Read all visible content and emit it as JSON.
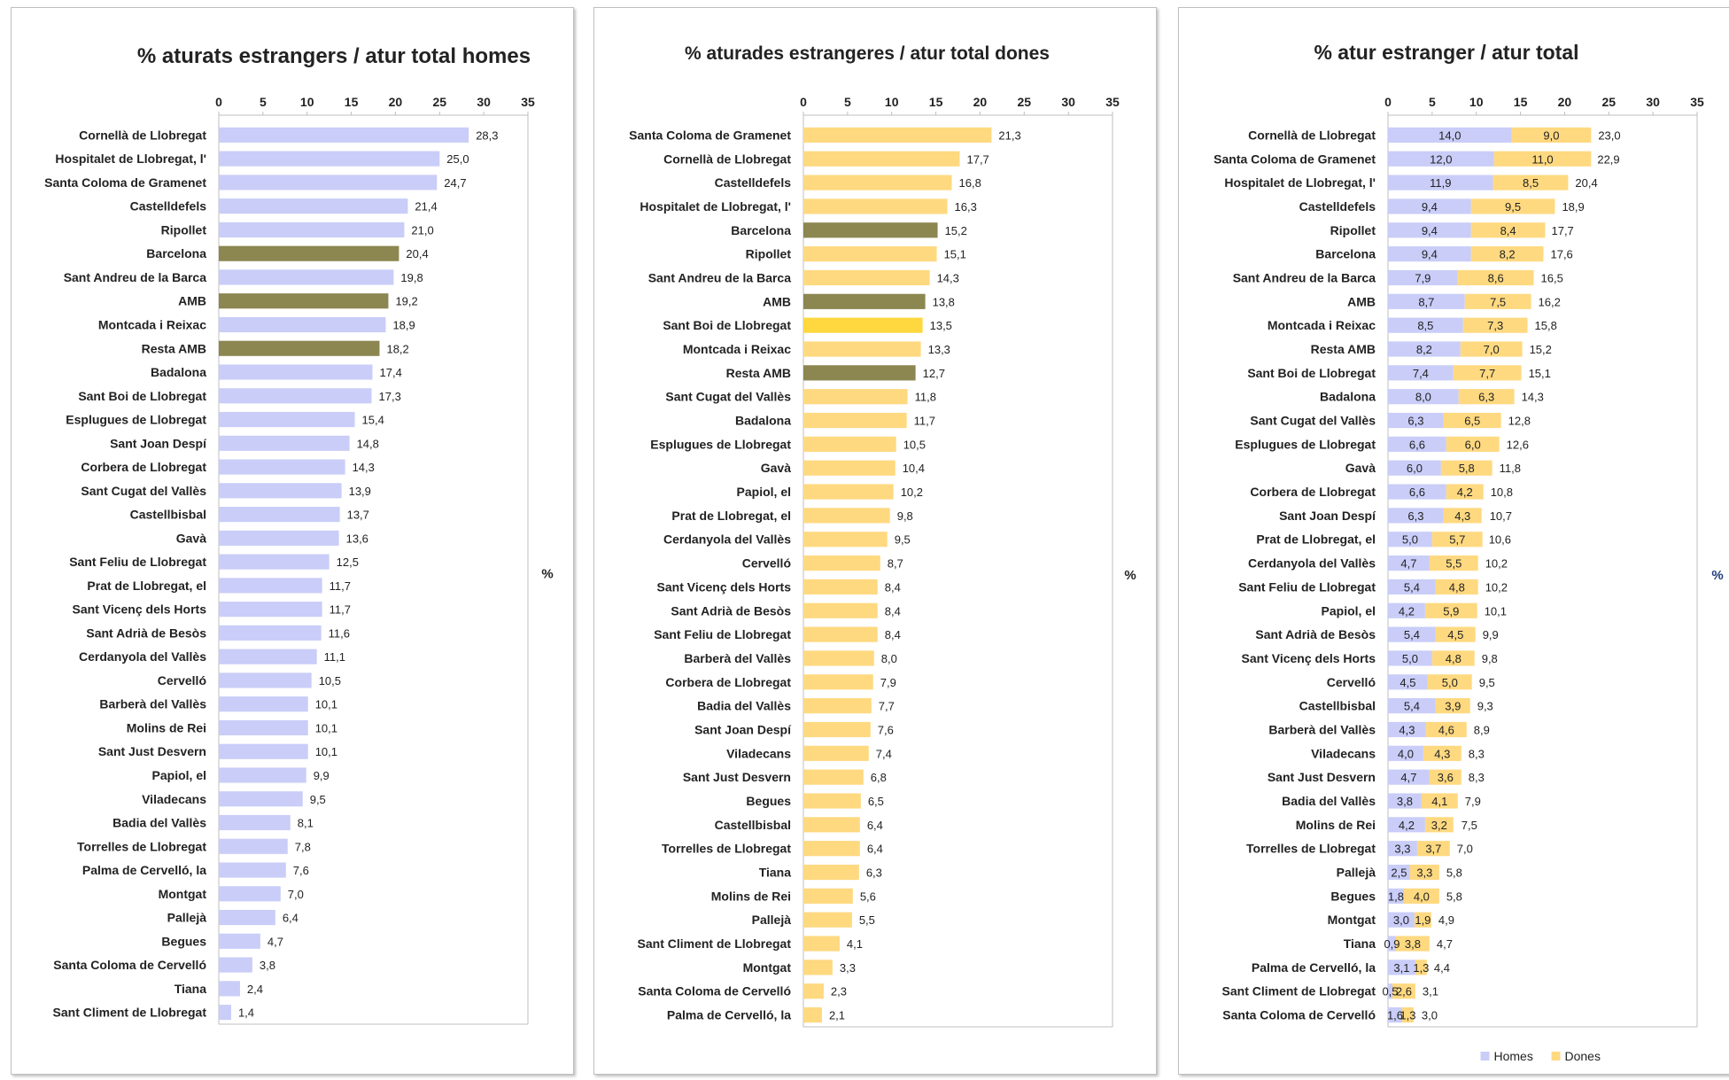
{
  "colors": {
    "homes": "#c9cdf8",
    "dones": "#ffd980",
    "highlight_homes": "#8c8650",
    "highlight_dones": "#8c8650",
    "highlight_yellow": "#ffd840",
    "axis": "#bfbfbf",
    "pct_label": "#1f3a7a"
  },
  "chart_data": [
    {
      "type": "bar",
      "title": "%  aturats estrangers / atur total homes",
      "ylabel": "%",
      "xlim": [
        0,
        35
      ],
      "ticks": [
        "0",
        "5",
        "10",
        "15",
        "20",
        "25",
        "30",
        "35"
      ],
      "grid": false,
      "categories": [
        "Cornellà de Llobregat",
        "Hospitalet de Llobregat, l'",
        "Santa Coloma de Gramenet",
        "Castelldefels",
        "Ripollet",
        "Barcelona",
        "Sant Andreu de la Barca",
        "AMB",
        "Montcada i Reixac",
        "Resta AMB",
        "Badalona",
        "Sant Boi de Llobregat",
        "Esplugues de Llobregat",
        "Sant Joan Despí",
        "Corbera de Llobregat",
        "Sant Cugat del Vallès",
        "Castellbisbal",
        "Gavà",
        "Sant Feliu de Llobregat",
        "Prat de Llobregat, el",
        "Sant Vicenç dels Horts",
        "Sant Adrià de Besòs",
        "Cerdanyola del Vallès",
        "Cervelló",
        "Barberà del Vallès",
        "Molins de Rei",
        "Sant Just Desvern",
        "Papiol, el",
        "Viladecans",
        "Badia del Vallès",
        "Torrelles de Llobregat",
        "Palma de Cervelló, la",
        "Montgat",
        "Pallejà",
        "Begues",
        "Santa Coloma de Cervelló",
        "Tiana",
        "Sant Climent de Llobregat"
      ],
      "values": [
        28.3,
        25.0,
        24.7,
        21.4,
        21.0,
        20.4,
        19.8,
        19.2,
        18.9,
        18.2,
        17.4,
        17.3,
        15.4,
        14.8,
        14.3,
        13.9,
        13.7,
        13.6,
        12.5,
        11.7,
        11.7,
        11.6,
        11.1,
        10.5,
        10.1,
        10.1,
        10.1,
        9.9,
        9.5,
        8.1,
        7.8,
        7.6,
        7.0,
        6.4,
        4.7,
        3.8,
        2.4,
        1.4
      ],
      "labels": [
        "28,3",
        "25,0",
        "24,7",
        "21,4",
        "21,0",
        "20,4",
        "19,8",
        "19,2",
        "18,9",
        "18,2",
        "17,4",
        "17,3",
        "15,4",
        "14,8",
        "14,3",
        "13,9",
        "13,7",
        "13,6",
        "12,5",
        "11,7",
        "11,7",
        "11,6",
        "11,1",
        "10,5",
        "10,1",
        "10,1",
        "10,1",
        "9,9",
        "9,5",
        "8,1",
        "7,8",
        "7,6",
        "7,0",
        "6,4",
        "4,7",
        "3,8",
        "2,4",
        "1,4"
      ],
      "highlight": [
        "Barcelona",
        "AMB",
        "Resta AMB"
      ]
    },
    {
      "type": "bar",
      "title": "% aturades estrangeres / atur total dones",
      "ylabel": "%",
      "xlim": [
        0,
        35
      ],
      "ticks": [
        "0",
        "5",
        "10",
        "15",
        "20",
        "25",
        "30",
        "35"
      ],
      "grid": false,
      "categories": [
        "Santa Coloma de Gramenet",
        "Cornellà de Llobregat",
        "Castelldefels",
        "Hospitalet de Llobregat, l'",
        "Barcelona",
        "Ripollet",
        "Sant Andreu de la Barca",
        "AMB",
        "Sant Boi de Llobregat",
        "Montcada i Reixac",
        "Resta AMB",
        "Sant Cugat del Vallès",
        "Badalona",
        "Esplugues de Llobregat",
        "Gavà",
        "Papiol, el",
        "Prat de Llobregat, el",
        "Cerdanyola del Vallès",
        "Cervelló",
        "Sant Vicenç dels Horts",
        "Sant Adrià de Besòs",
        "Sant Feliu de Llobregat",
        "Barberà del Vallès",
        "Corbera de Llobregat",
        "Badia del Vallès",
        "Sant Joan Despí",
        "Viladecans",
        "Sant Just Desvern",
        "Begues",
        "Castellbisbal",
        "Torrelles de Llobregat",
        "Tiana",
        "Molins de Rei",
        "Pallejà",
        "Sant Climent de Llobregat",
        "Montgat",
        "Santa Coloma de Cervelló",
        "Palma de Cervelló, la"
      ],
      "values": [
        21.3,
        17.7,
        16.8,
        16.3,
        15.2,
        15.1,
        14.3,
        13.8,
        13.5,
        13.3,
        12.7,
        11.8,
        11.7,
        10.5,
        10.4,
        10.2,
        9.8,
        9.5,
        8.7,
        8.4,
        8.4,
        8.4,
        8.0,
        7.9,
        7.7,
        7.6,
        7.4,
        6.8,
        6.5,
        6.4,
        6.4,
        6.3,
        5.6,
        5.5,
        4.1,
        3.3,
        2.3,
        2.1
      ],
      "labels": [
        "21,3",
        "17,7",
        "16,8",
        "16,3",
        "15,2",
        "15,1",
        "14,3",
        "13,8",
        "13,5",
        "13,3",
        "12,7",
        "11,8",
        "11,7",
        "10,5",
        "10,4",
        "10,2",
        "9,8",
        "9,5",
        "8,7",
        "8,4",
        "8,4",
        "8,4",
        "8,0",
        "7,9",
        "7,7",
        "7,6",
        "7,4",
        "6,8",
        "6,5",
        "6,4",
        "6,4",
        "6,3",
        "5,6",
        "5,5",
        "4,1",
        "3,3",
        "2,3",
        "2,1"
      ],
      "highlight": [
        "Barcelona",
        "AMB",
        "Resta AMB"
      ],
      "highlight_yellow": [
        "Sant Boi de Llobregat"
      ]
    },
    {
      "type": "bar",
      "stacked": true,
      "title": "%  atur estranger / atur total",
      "ylabel": "%",
      "xlim": [
        0,
        35
      ],
      "ticks": [
        "0",
        "5",
        "10",
        "15",
        "20",
        "25",
        "30",
        "35"
      ],
      "grid": false,
      "legend": "bottom",
      "categories": [
        "Cornellà de Llobregat",
        "Santa Coloma de Gramenet",
        "Hospitalet de Llobregat, l'",
        "Castelldefels",
        "Ripollet",
        "Barcelona",
        "Sant Andreu de la Barca",
        "AMB",
        "Montcada i Reixac",
        "Resta AMB",
        "Sant Boi de Llobregat",
        "Badalona",
        "Sant Cugat del Vallès",
        "Esplugues de Llobregat",
        "Gavà",
        "Corbera de Llobregat",
        "Sant Joan Despí",
        "Prat de Llobregat, el",
        "Cerdanyola del Vallès",
        "Sant Feliu de Llobregat",
        "Papiol, el",
        "Sant Adrià de Besòs",
        "Sant Vicenç dels Horts",
        "Cervelló",
        "Castellbisbal",
        "Barberà del Vallès",
        "Viladecans",
        "Sant Just Desvern",
        "Badia del Vallès",
        "Molins de Rei",
        "Torrelles de Llobregat",
        "Pallejà",
        "Begues",
        "Montgat",
        "Tiana",
        "Palma de Cervelló, la",
        "Sant Climent de Llobregat",
        "Santa Coloma de Cervelló"
      ],
      "series": [
        {
          "name": "Homes",
          "values": [
            14.0,
            12.0,
            11.9,
            9.4,
            9.4,
            9.4,
            7.9,
            8.7,
            8.5,
            8.2,
            7.4,
            8.0,
            6.3,
            6.6,
            6.0,
            6.6,
            6.3,
            5.0,
            4.7,
            5.4,
            4.2,
            5.4,
            5.0,
            4.5,
            5.4,
            4.3,
            4.0,
            4.7,
            3.8,
            4.2,
            3.3,
            2.5,
            1.8,
            3.0,
            0.9,
            3.1,
            0.5,
            1.6
          ],
          "labels": [
            "14,0",
            "12,0",
            "11,9",
            "9,4",
            "9,4",
            "9,4",
            "7,9",
            "8,7",
            "8,5",
            "8,2",
            "7,4",
            "8,0",
            "6,3",
            "6,6",
            "6,0",
            "6,6",
            "6,3",
            "5,0",
            "4,7",
            "5,4",
            "4,2",
            "5,4",
            "5,0",
            "4,5",
            "5,4",
            "4,3",
            "4,0",
            "4,7",
            "3,8",
            "4,2",
            "3,3",
            "2,5",
            "1,8",
            "3,0",
            "0,9",
            "3,1",
            "0,5",
            "1,6"
          ]
        },
        {
          "name": "Dones",
          "values": [
            9.0,
            11.0,
            8.5,
            9.5,
            8.4,
            8.2,
            8.6,
            7.5,
            7.3,
            7.0,
            7.7,
            6.3,
            6.5,
            6.0,
            5.8,
            4.2,
            4.3,
            5.7,
            5.5,
            4.8,
            5.9,
            4.5,
            4.8,
            5.0,
            3.9,
            4.6,
            4.3,
            3.6,
            4.1,
            3.2,
            3.7,
            3.3,
            4.0,
            1.9,
            3.8,
            1.3,
            2.6,
            1.3
          ],
          "labels": [
            "9,0",
            "11,0",
            "8,5",
            "9,5",
            "8,4",
            "8,2",
            "8,6",
            "7,5",
            "7,3",
            "7,0",
            "7,7",
            "6,3",
            "6,5",
            "6,0",
            "5,8",
            "4,2",
            "4,3",
            "5,7",
            "5,5",
            "4,8",
            "5,9",
            "4,5",
            "4,8",
            "5,0",
            "3,9",
            "4,6",
            "4,3",
            "3,6",
            "4,1",
            "3,2",
            "3,7",
            "3,3",
            "4,0",
            "1,9",
            "3,8",
            "1,3",
            "2,6",
            "1,3"
          ]
        }
      ],
      "totals": [
        23.0,
        22.9,
        20.4,
        18.9,
        17.7,
        17.6,
        16.5,
        16.2,
        15.8,
        15.2,
        15.1,
        14.3,
        12.8,
        12.6,
        11.8,
        10.8,
        10.7,
        10.6,
        10.2,
        10.2,
        10.1,
        9.9,
        9.8,
        9.5,
        9.3,
        8.9,
        8.3,
        8.3,
        7.9,
        7.5,
        7.0,
        5.8,
        5.8,
        4.9,
        4.7,
        4.4,
        3.1,
        3.0
      ],
      "total_labels": [
        "23,0",
        "22,9",
        "20,4",
        "18,9",
        "17,7",
        "17,6",
        "16,5",
        "16,2",
        "15,8",
        "15,2",
        "15,1",
        "14,3",
        "12,8",
        "12,6",
        "11,8",
        "10,8",
        "10,7",
        "10,6",
        "10,2",
        "10,2",
        "10,1",
        "9,9",
        "9,8",
        "9,5",
        "9,3",
        "8,9",
        "8,3",
        "8,3",
        "7,9",
        "7,5",
        "7,0",
        "5,8",
        "5,8",
        "4,9",
        "4,7",
        "4,4",
        "3,1",
        "3,0"
      ]
    }
  ]
}
